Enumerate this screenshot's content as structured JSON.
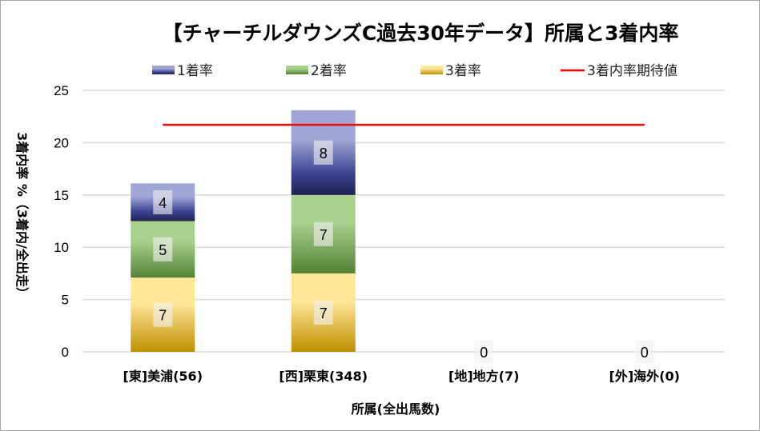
{
  "chart_data": {
    "type": "bar",
    "stacked": true,
    "title": "【チャーチルダウンズC過去30年データ】所属と3着内率",
    "xlabel": "所属(全出馬数)",
    "ylabel": "3着内率 %（3着内/全出走）",
    "ylim": [
      0,
      25
    ],
    "yticks": [
      "0",
      "5",
      "10",
      "15",
      "20",
      "25"
    ],
    "grid": true,
    "legend_position": "top",
    "categories": [
      "[東]美浦(56)",
      "[西]栗東(348)",
      "[地]地方(7)",
      "[外]海外(0)"
    ],
    "series": [
      {
        "name": "3着率",
        "values": [
          7.1,
          7.5,
          0,
          0
        ],
        "labels": [
          "7",
          "7",
          "0",
          "0"
        ],
        "color_top": "#ffe699",
        "color_bottom": "#bf9000"
      },
      {
        "name": "2着率",
        "values": [
          5.4,
          7.5,
          0,
          0
        ],
        "labels": [
          "5",
          "7",
          "",
          ""
        ],
        "color_top": "#a9d18e",
        "color_bottom": "#548235"
      },
      {
        "name": "1着率",
        "values": [
          3.6,
          8.1,
          0,
          0
        ],
        "labels": [
          "4",
          "8",
          "",
          ""
        ],
        "color_top": "#9fa6d6",
        "color_bottom": "#1f2150"
      }
    ],
    "reference_line": {
      "name": "3着内率期待値",
      "value": 21.7,
      "color": "#ff0000"
    }
  }
}
